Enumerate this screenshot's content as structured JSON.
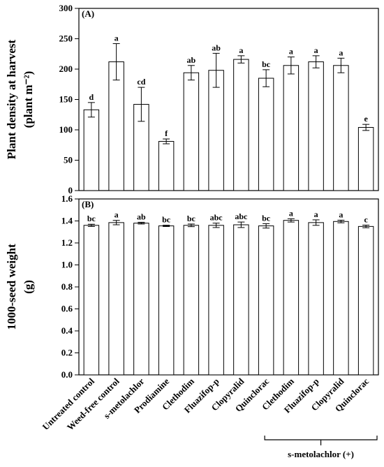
{
  "chart_data": [
    {
      "type": "bar",
      "panel_label": "(A)",
      "y_label": [
        "Plant density at harvest",
        "(plant m⁻²)"
      ],
      "ylim": [
        0,
        300
      ],
      "yticks": [
        0,
        50,
        100,
        150,
        200,
        250,
        300
      ],
      "values": [
        133,
        212,
        142,
        81,
        194,
        198,
        216,
        185,
        206,
        212,
        206,
        104
      ],
      "errors": [
        12,
        30,
        28,
        4,
        12,
        28,
        6,
        14,
        14,
        10,
        12,
        5
      ],
      "letters": [
        "d",
        "a",
        "cd",
        "f",
        "ab",
        "ab",
        "a",
        "bc",
        "a",
        "a",
        "a",
        "e"
      ],
      "color": "#ffffff"
    },
    {
      "type": "bar",
      "panel_label": "(B)",
      "y_label": [
        "1000-seed weight",
        "(g)"
      ],
      "ylim": [
        0,
        1.6
      ],
      "yticks": [
        {
          "value": 0,
          "label": "0.0"
        },
        {
          "value": 0.2,
          "label": "0.2"
        },
        {
          "value": 0.4,
          "label": "0.4"
        },
        {
          "value": 0.6,
          "label": "0.6"
        },
        {
          "value": 0.8,
          "label": "0.8"
        },
        {
          "value": 1,
          "label": "1.0"
        },
        {
          "value": 1.2,
          "label": "1.2"
        },
        {
          "value": 1.4,
          "label": "1.4"
        },
        {
          "value": 1.6,
          "label": "1.6"
        }
      ],
      "categories": [
        "Untreated control",
        "Weed-free control",
        "s-metolachlor",
        "Prodiamine",
        "Clethodim",
        "Fluazifop-p",
        "Clopyralid",
        "Quinclorac",
        "Clethodim",
        "Fluazifop-p",
        "Clopyralid",
        "Quinclorac"
      ],
      "values": [
        1.36,
        1.385,
        1.38,
        1.355,
        1.36,
        1.36,
        1.365,
        1.355,
        1.405,
        1.385,
        1.395,
        1.35
      ],
      "errors": [
        0.01,
        0.02,
        0.008,
        0.006,
        0.012,
        0.02,
        0.025,
        0.02,
        0.015,
        0.025,
        0.012,
        0.012
      ],
      "letters": [
        "bc",
        "a",
        "ab",
        "bc",
        "bc",
        "abc",
        "abc",
        "bc",
        "a",
        "a",
        "a",
        "c"
      ],
      "bracket_label": "s-metolachlor (+)",
      "color": "#ffffff"
    }
  ]
}
